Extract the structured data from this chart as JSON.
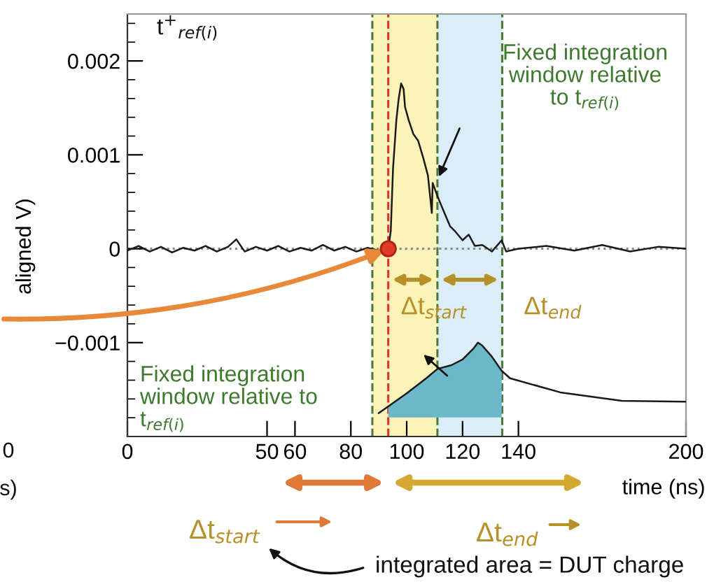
{
  "chart_data": {
    "type": "line",
    "ylabel": "aligned V)",
    "xlabel": "time (ns)",
    "xlim": [
      0,
      200
    ],
    "xticks": [
      0,
      50,
      60,
      80,
      100,
      120,
      140,
      200
    ],
    "ylim": [
      -0.002,
      0.0025
    ],
    "yticks": [
      0.002,
      0.001,
      0,
      {
        "value": -0.001,
        "label": "−0.001"
      }
    ],
    "grid": false,
    "series": [
      {
        "color": "#1a1a1a",
        "x": [
          0,
          4,
          8,
          12,
          16,
          20,
          24,
          28,
          32,
          36,
          39,
          42,
          46,
          50,
          54,
          58,
          62,
          66,
          70,
          74,
          78,
          82,
          86,
          90,
          93.4,
          94.3,
          95.1,
          96.3,
          97.1,
          98,
          98.9,
          99.4,
          100.7,
          102.4,
          104.1,
          105.9,
          107.6,
          109,
          109.3,
          111,
          113.1,
          115.5,
          117.2,
          120,
          122.2,
          124.4,
          127.1,
          130.5,
          134,
          135.6,
          140,
          150,
          160,
          170,
          180,
          190,
          200
        ],
        "values": [
          -2e-05,
          3e-05,
          -3e-05,
          2e-05,
          -4e-05,
          1e-05,
          -2e-05,
          3e-05,
          -3e-05,
          2e-05,
          0.0001,
          -3e-05,
          2e-05,
          -2e-05,
          3e-05,
          -3e-05,
          1e-05,
          -2e-05,
          4e-05,
          -2e-05,
          2e-05,
          -3e-05,
          1e-05,
          -2e-05,
          0,
          0.00019,
          0.00085,
          0.00137,
          0.00159,
          0.00176,
          0.0017,
          0.00151,
          0.00137,
          0.00122,
          0.00115,
          0.00097,
          0.00078,
          0.00038,
          0.0007,
          0.00056,
          0.00041,
          0.00024,
          0.00019,
          9e-05,
          0.00015,
          3e-05,
          4e-05,
          -3e-05,
          9e-05,
          -3e-05,
          0,
          3e-05,
          -2e-05,
          4e-05,
          -3e-05,
          2e-05,
          0
        ]
      },
      {
        "color": "#1a1a1a",
        "x": [
          90,
          93.4,
          100,
          107,
          111,
          116,
          120,
          124,
          125.5,
          127,
          130.5,
          134,
          137,
          155,
          177,
          200
        ],
        "values": [
          -0.00175,
          -0.00168,
          -0.00154,
          -0.00138,
          -0.00128,
          -0.00124,
          -0.00118,
          -0.00106,
          -0.001,
          -0.00103,
          -0.00115,
          -0.0013,
          -0.00138,
          -0.00153,
          -0.00162,
          -0.00163
        ]
      },
      {
        "type": "scatter",
        "color": "#e03a2a",
        "x": [
          93.4
        ],
        "values": [
          0
        ]
      }
    ],
    "ref_lines": [
      {
        "axis": "y",
        "value": 0,
        "color": "#888888",
        "line_style": "dotted"
      },
      {
        "axis": "x",
        "value": 87.7,
        "color": "#4a7a3a",
        "line_style": "dashed"
      },
      {
        "axis": "x",
        "value": 93.4,
        "color": "#e03030",
        "line_style": "dashed"
      },
      {
        "axis": "x",
        "value": 111,
        "color": "#4a7a3a",
        "line_style": "dashed"
      },
      {
        "axis": "x",
        "value": 134.2,
        "color": "#4a7a3a",
        "line_style": "dashed"
      }
    ],
    "bands": [
      {
        "axis": "x",
        "from": 87.7,
        "to": 111,
        "color": "#fcf3b8"
      },
      {
        "axis": "x",
        "from": 111,
        "to": 134.2,
        "color": "#dbeef7"
      }
    ],
    "annotations": [
      "t$^{+}$$_{ref(i)}$",
      "Fixed integration\nwindow relative\nto t$_{ref(i)}$",
      "Fixed integration\nwindow relative to\nt$_{ref(i)}$",
      "Δt$_{start}$",
      "Δt$_{end}$",
      "Δt$_{start}$",
      "Δt$_{end}$",
      "integrated area = DUT charge",
      "0",
      "s)"
    ]
  }
}
